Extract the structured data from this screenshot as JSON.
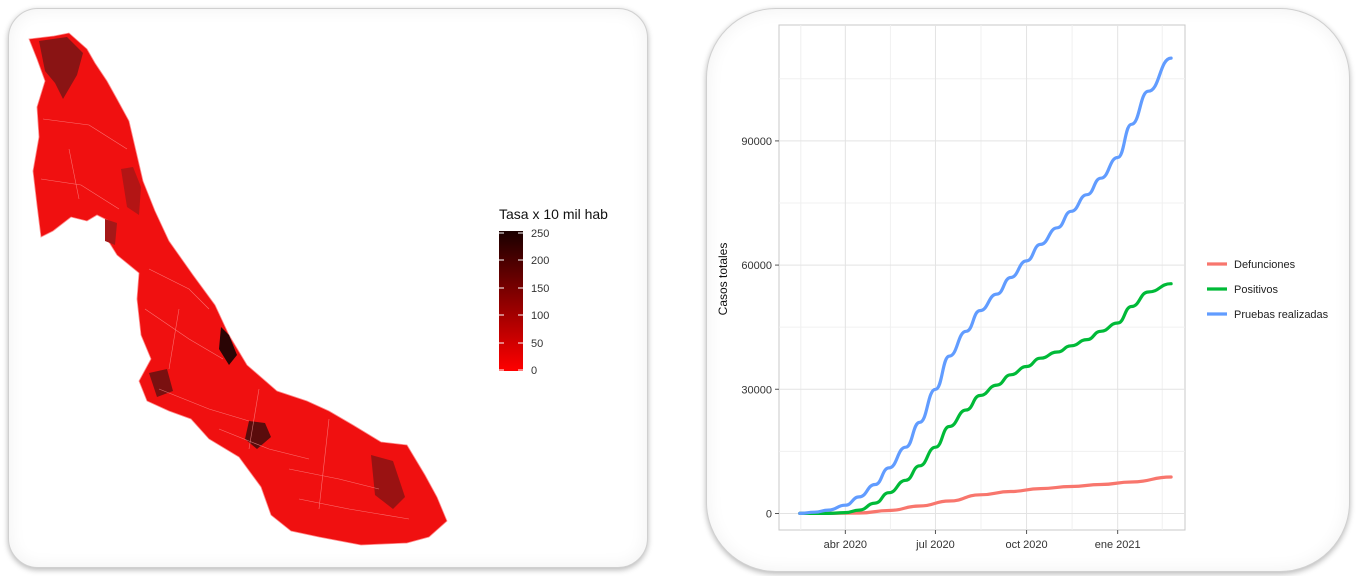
{
  "chart_data": [
    {
      "type": "map",
      "legend": {
        "title": "Tasa x 10 mil hab",
        "ticks": [
          "250",
          "200",
          "150",
          "100",
          "50",
          "0"
        ],
        "min": 0,
        "max": 250,
        "color_low": "#ff0000",
        "color_high": "#1a0000"
      }
    },
    {
      "type": "line",
      "ylabel": "Casos totales",
      "y_ticks": [
        0,
        30000,
        60000,
        90000
      ],
      "y_tick_labels": [
        "0",
        "30000",
        "60000",
        "90000"
      ],
      "ylim": [
        -4000,
        118000
      ],
      "xlim": [
        "2020-01-25",
        "2021-03-10"
      ],
      "x_ticks": [
        {
          "date": "2020-04-01",
          "label": "abr 2020"
        },
        {
          "date": "2020-07-01",
          "label": "jul 2020"
        },
        {
          "date": "2020-10-01",
          "label": "oct 2020"
        },
        {
          "date": "2021-01-01",
          "label": "ene 2021"
        }
      ],
      "grid": true,
      "legend_position": "right",
      "series": [
        {
          "name": "Defunciones",
          "color": "#f8766d",
          "x": [
            "2020-02-15",
            "2020-03-15",
            "2020-04-15",
            "2020-05-15",
            "2020-06-15",
            "2020-07-15",
            "2020-08-15",
            "2020-09-15",
            "2020-10-15",
            "2020-11-15",
            "2020-12-15",
            "2021-01-15",
            "2021-02-24"
          ],
          "y": [
            0,
            0,
            100,
            700,
            1800,
            3000,
            4500,
            5300,
            6000,
            6500,
            7000,
            7600,
            8800
          ]
        },
        {
          "name": "Positivos",
          "color": "#00ba38",
          "x": [
            "2020-02-15",
            "2020-03-15",
            "2020-04-01",
            "2020-04-15",
            "2020-05-01",
            "2020-05-15",
            "2020-06-01",
            "2020-06-15",
            "2020-07-01",
            "2020-07-15",
            "2020-08-01",
            "2020-08-15",
            "2020-09-01",
            "2020-09-15",
            "2020-10-01",
            "2020-10-15",
            "2020-11-01",
            "2020-11-15",
            "2020-12-01",
            "2020-12-15",
            "2021-01-01",
            "2021-01-15",
            "2021-02-01",
            "2021-02-24"
          ],
          "y": [
            0,
            0,
            200,
            800,
            2500,
            5000,
            8000,
            11500,
            16000,
            21000,
            25000,
            28500,
            31000,
            33500,
            35500,
            37500,
            39000,
            40500,
            42000,
            44000,
            46000,
            50000,
            53500,
            55500
          ]
        },
        {
          "name": "Pruebas realizadas",
          "color": "#619cff",
          "x": [
            "2020-02-15",
            "2020-03-01",
            "2020-03-15",
            "2020-04-01",
            "2020-04-15",
            "2020-05-01",
            "2020-05-15",
            "2020-06-01",
            "2020-06-15",
            "2020-07-01",
            "2020-07-15",
            "2020-08-01",
            "2020-08-15",
            "2020-09-01",
            "2020-09-15",
            "2020-10-01",
            "2020-10-15",
            "2020-11-01",
            "2020-11-15",
            "2020-12-01",
            "2020-12-15",
            "2021-01-01",
            "2021-01-15",
            "2021-02-01",
            "2021-02-24"
          ],
          "y": [
            0,
            300,
            800,
            2000,
            4000,
            7000,
            11000,
            16000,
            22000,
            30000,
            38000,
            44000,
            49000,
            53000,
            57000,
            61000,
            65000,
            69000,
            73000,
            77000,
            81000,
            86000,
            94000,
            102000,
            110000
          ]
        }
      ]
    }
  ]
}
